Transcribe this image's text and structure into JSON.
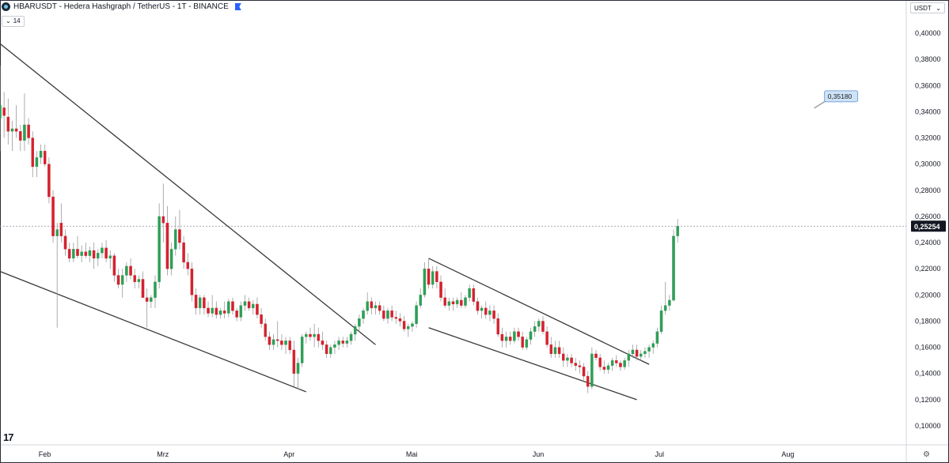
{
  "header": {
    "title": "HBARUSDT - Hedera Hashgraph / TetherUS - 1T - BINANCE",
    "indicator_label": "14",
    "currency": "USDT",
    "logo_icon": "hedera-coin-icon",
    "flag_icon": "flag-icon"
  },
  "chart_data": {
    "type": "candlestick",
    "title": "HBARUSDT - Hedera Hashgraph / TetherUS - 1T - BINANCE",
    "y_ticks": [
      "0,40000",
      "0,38000",
      "0,36000",
      "0,34000",
      "0,32000",
      "0,30000",
      "0,28000",
      "0,26000",
      "0,24000",
      "0,22000",
      "0,20000",
      "0,18000",
      "0,16000",
      "0,14000",
      "0,12000",
      "0,10000"
    ],
    "y_tick_values": [
      0.4,
      0.38,
      0.36,
      0.34,
      0.32,
      0.3,
      0.28,
      0.26,
      0.24,
      0.22,
      0.2,
      0.18,
      0.16,
      0.14,
      0.12,
      0.1
    ],
    "ylim": [
      0.09,
      0.41
    ],
    "x_ticks": [
      "Feb",
      "Mrz",
      "Apr",
      "Mai",
      "Jun",
      "Jul",
      "Aug"
    ],
    "x_tick_dates": [
      "2024-02-01",
      "2024-03-01",
      "2024-04-01",
      "2024-05-01",
      "2024-06-01",
      "2024-07-01",
      "2024-08-01"
    ],
    "xlim": [
      "2024-01-21",
      "2024-08-30"
    ],
    "last_price_label": "0,25254",
    "last_price": 0.25254,
    "annotation": {
      "label": "0,35180",
      "date": "2024-08-09",
      "price": 0.3518
    },
    "colors": {
      "up": "#2e9e57",
      "down": "#d4222e",
      "line": "#3a3a3a",
      "grid": "#f0f3fa",
      "price_line": "#9aa0ab"
    },
    "ohlc": [
      [
        "2024-01-21",
        0.335,
        0.375,
        0.31,
        0.345
      ],
      [
        "2024-01-22",
        0.343,
        0.355,
        0.32,
        0.337
      ],
      [
        "2024-01-23",
        0.336,
        0.35,
        0.315,
        0.325
      ],
      [
        "2024-01-24",
        0.325,
        0.333,
        0.31,
        0.327
      ],
      [
        "2024-01-25",
        0.327,
        0.345,
        0.32,
        0.325
      ],
      [
        "2024-01-26",
        0.325,
        0.33,
        0.31,
        0.318
      ],
      [
        "2024-01-27",
        0.318,
        0.354,
        0.31,
        0.33
      ],
      [
        "2024-01-28",
        0.33,
        0.335,
        0.315,
        0.32
      ],
      [
        "2024-01-29",
        0.32,
        0.325,
        0.29,
        0.298
      ],
      [
        "2024-01-30",
        0.298,
        0.31,
        0.29,
        0.305
      ],
      [
        "2024-01-31",
        0.305,
        0.315,
        0.3,
        0.31
      ],
      [
        "2024-02-01",
        0.31,
        0.315,
        0.298,
        0.3
      ],
      [
        "2024-02-02",
        0.3,
        0.305,
        0.27,
        0.275
      ],
      [
        "2024-02-03",
        0.275,
        0.28,
        0.24,
        0.245
      ],
      [
        "2024-02-04",
        0.245,
        0.255,
        0.175,
        0.25
      ],
      [
        "2024-02-05",
        0.255,
        0.27,
        0.24,
        0.245
      ],
      [
        "2024-02-06",
        0.245,
        0.25,
        0.23,
        0.235
      ],
      [
        "2024-02-07",
        0.235,
        0.24,
        0.225,
        0.228
      ],
      [
        "2024-02-08",
        0.228,
        0.24,
        0.225,
        0.235
      ],
      [
        "2024-02-09",
        0.235,
        0.245,
        0.228,
        0.23
      ],
      [
        "2024-02-10",
        0.23,
        0.238,
        0.225,
        0.233
      ],
      [
        "2024-02-11",
        0.233,
        0.24,
        0.228,
        0.23
      ],
      [
        "2024-02-12",
        0.23,
        0.237,
        0.225,
        0.234
      ],
      [
        "2024-02-13",
        0.234,
        0.24,
        0.22,
        0.228
      ],
      [
        "2024-02-14",
        0.228,
        0.235,
        0.222,
        0.232
      ],
      [
        "2024-02-15",
        0.232,
        0.24,
        0.228,
        0.236
      ],
      [
        "2024-02-16",
        0.236,
        0.242,
        0.225,
        0.228
      ],
      [
        "2024-02-17",
        0.228,
        0.234,
        0.22,
        0.23
      ],
      [
        "2024-02-18",
        0.23,
        0.232,
        0.21,
        0.215
      ],
      [
        "2024-02-19",
        0.215,
        0.22,
        0.205,
        0.208
      ],
      [
        "2024-02-20",
        0.208,
        0.22,
        0.198,
        0.215
      ],
      [
        "2024-02-21",
        0.215,
        0.225,
        0.21,
        0.222
      ],
      [
        "2024-02-22",
        0.222,
        0.228,
        0.212,
        0.215
      ],
      [
        "2024-02-23",
        0.215,
        0.22,
        0.205,
        0.21
      ],
      [
        "2024-02-24",
        0.21,
        0.215,
        0.205,
        0.212
      ],
      [
        "2024-02-25",
        0.212,
        0.218,
        0.2,
        0.198
      ],
      [
        "2024-02-26",
        0.198,
        0.205,
        0.175,
        0.195
      ],
      [
        "2024-02-27",
        0.195,
        0.2,
        0.19,
        0.198
      ],
      [
        "2024-02-28",
        0.198,
        0.215,
        0.19,
        0.21
      ],
      [
        "2024-02-29",
        0.21,
        0.27,
        0.205,
        0.26
      ],
      [
        "2024-03-01",
        0.26,
        0.285,
        0.24,
        0.255
      ],
      [
        "2024-03-02",
        0.255,
        0.268,
        0.215,
        0.22
      ],
      [
        "2024-03-03",
        0.22,
        0.24,
        0.215,
        0.235
      ],
      [
        "2024-03-04",
        0.235,
        0.26,
        0.23,
        0.25
      ],
      [
        "2024-03-05",
        0.25,
        0.265,
        0.235,
        0.24
      ],
      [
        "2024-03-06",
        0.24,
        0.245,
        0.22,
        0.225
      ],
      [
        "2024-03-07",
        0.225,
        0.232,
        0.215,
        0.22
      ],
      [
        "2024-03-08",
        0.22,
        0.225,
        0.195,
        0.2
      ],
      [
        "2024-03-09",
        0.2,
        0.205,
        0.185,
        0.19
      ],
      [
        "2024-03-10",
        0.19,
        0.2,
        0.185,
        0.198
      ],
      [
        "2024-03-11",
        0.198,
        0.2,
        0.185,
        0.19
      ],
      [
        "2024-03-12",
        0.19,
        0.195,
        0.183,
        0.186
      ],
      [
        "2024-03-13",
        0.186,
        0.2,
        0.183,
        0.19
      ],
      [
        "2024-03-14",
        0.19,
        0.195,
        0.182,
        0.185
      ],
      [
        "2024-03-15",
        0.185,
        0.19,
        0.182,
        0.188
      ],
      [
        "2024-03-16",
        0.188,
        0.195,
        0.182,
        0.186
      ],
      [
        "2024-03-17",
        0.186,
        0.197,
        0.183,
        0.195
      ],
      [
        "2024-03-18",
        0.195,
        0.198,
        0.185,
        0.188
      ],
      [
        "2024-03-19",
        0.188,
        0.19,
        0.18,
        0.183
      ],
      [
        "2024-03-20",
        0.183,
        0.195,
        0.18,
        0.192
      ],
      [
        "2024-03-21",
        0.192,
        0.2,
        0.188,
        0.195
      ],
      [
        "2024-03-22",
        0.195,
        0.198,
        0.188,
        0.19
      ],
      [
        "2024-03-23",
        0.19,
        0.196,
        0.185,
        0.193
      ],
      [
        "2024-03-24",
        0.193,
        0.198,
        0.182,
        0.185
      ],
      [
        "2024-03-25",
        0.185,
        0.19,
        0.175,
        0.178
      ],
      [
        "2024-03-26",
        0.178,
        0.182,
        0.165,
        0.168
      ],
      [
        "2024-03-27",
        0.168,
        0.172,
        0.158,
        0.162
      ],
      [
        "2024-03-28",
        0.162,
        0.17,
        0.158,
        0.166
      ],
      [
        "2024-03-29",
        0.166,
        0.18,
        0.16,
        0.165
      ],
      [
        "2024-03-30",
        0.165,
        0.17,
        0.158,
        0.162
      ],
      [
        "2024-03-31",
        0.162,
        0.168,
        0.155,
        0.165
      ],
      [
        "2024-04-01",
        0.165,
        0.168,
        0.155,
        0.158
      ],
      [
        "2024-04-02",
        0.158,
        0.165,
        0.13,
        0.14
      ],
      [
        "2024-04-03",
        0.14,
        0.152,
        0.128,
        0.148
      ],
      [
        "2024-04-04",
        0.148,
        0.17,
        0.145,
        0.168
      ],
      [
        "2024-04-05",
        0.168,
        0.172,
        0.163,
        0.17
      ],
      [
        "2024-04-06",
        0.17,
        0.175,
        0.165,
        0.168
      ],
      [
        "2024-04-07",
        0.168,
        0.178,
        0.16,
        0.17
      ],
      [
        "2024-04-08",
        0.17,
        0.175,
        0.16,
        0.165
      ],
      [
        "2024-04-09",
        0.165,
        0.172,
        0.158,
        0.162
      ],
      [
        "2024-04-10",
        0.162,
        0.165,
        0.152,
        0.155
      ],
      [
        "2024-04-11",
        0.155,
        0.162,
        0.152,
        0.16
      ],
      [
        "2024-04-12",
        0.16,
        0.165,
        0.155,
        0.162
      ],
      [
        "2024-04-13",
        0.162,
        0.168,
        0.158,
        0.165
      ],
      [
        "2024-04-14",
        0.165,
        0.168,
        0.16,
        0.163
      ],
      [
        "2024-04-15",
        0.163,
        0.168,
        0.16,
        0.165
      ],
      [
        "2024-04-16",
        0.165,
        0.172,
        0.162,
        0.17
      ],
      [
        "2024-04-17",
        0.17,
        0.178,
        0.165,
        0.176
      ],
      [
        "2024-04-18",
        0.176,
        0.185,
        0.172,
        0.182
      ],
      [
        "2024-04-19",
        0.182,
        0.19,
        0.178,
        0.188
      ],
      [
        "2024-04-20",
        0.188,
        0.202,
        0.185,
        0.195
      ],
      [
        "2024-04-21",
        0.195,
        0.198,
        0.185,
        0.19
      ],
      [
        "2024-04-22",
        0.19,
        0.195,
        0.185,
        0.192
      ],
      [
        "2024-04-23",
        0.192,
        0.195,
        0.185,
        0.188
      ],
      [
        "2024-04-24",
        0.188,
        0.192,
        0.18,
        0.182
      ],
      [
        "2024-04-25",
        0.182,
        0.19,
        0.178,
        0.188
      ],
      [
        "2024-04-26",
        0.188,
        0.192,
        0.18,
        0.183
      ],
      [
        "2024-04-27",
        0.183,
        0.188,
        0.178,
        0.182
      ],
      [
        "2024-04-28",
        0.182,
        0.186,
        0.176,
        0.18
      ],
      [
        "2024-04-29",
        0.18,
        0.184,
        0.172,
        0.174
      ],
      [
        "2024-04-30",
        0.174,
        0.178,
        0.168,
        0.176
      ],
      [
        "2024-05-01",
        0.176,
        0.18,
        0.172,
        0.178
      ],
      [
        "2024-05-02",
        0.178,
        0.195,
        0.175,
        0.192
      ],
      [
        "2024-05-03",
        0.192,
        0.205,
        0.19,
        0.2
      ],
      [
        "2024-05-04",
        0.2,
        0.225,
        0.198,
        0.22
      ],
      [
        "2024-05-05",
        0.22,
        0.228,
        0.205,
        0.208
      ],
      [
        "2024-05-06",
        0.208,
        0.222,
        0.205,
        0.218
      ],
      [
        "2024-05-07",
        0.218,
        0.222,
        0.205,
        0.21
      ],
      [
        "2024-05-08",
        0.21,
        0.215,
        0.195,
        0.198
      ],
      [
        "2024-05-09",
        0.198,
        0.205,
        0.19,
        0.192
      ],
      [
        "2024-05-10",
        0.192,
        0.198,
        0.188,
        0.195
      ],
      [
        "2024-05-11",
        0.195,
        0.198,
        0.188,
        0.193
      ],
      [
        "2024-05-12",
        0.193,
        0.198,
        0.19,
        0.196
      ],
      [
        "2024-05-13",
        0.196,
        0.202,
        0.19,
        0.192
      ],
      [
        "2024-05-14",
        0.192,
        0.2,
        0.19,
        0.198
      ],
      [
        "2024-05-15",
        0.198,
        0.208,
        0.195,
        0.205
      ],
      [
        "2024-05-16",
        0.205,
        0.208,
        0.192,
        0.195
      ],
      [
        "2024-05-17",
        0.195,
        0.198,
        0.185,
        0.188
      ],
      [
        "2024-05-18",
        0.188,
        0.192,
        0.182,
        0.19
      ],
      [
        "2024-05-19",
        0.19,
        0.195,
        0.182,
        0.185
      ],
      [
        "2024-05-20",
        0.185,
        0.192,
        0.18,
        0.188
      ],
      [
        "2024-05-21",
        0.188,
        0.192,
        0.178,
        0.182
      ],
      [
        "2024-05-22",
        0.182,
        0.186,
        0.168,
        0.17
      ],
      [
        "2024-05-23",
        0.17,
        0.175,
        0.16,
        0.165
      ],
      [
        "2024-05-24",
        0.165,
        0.172,
        0.16,
        0.168
      ],
      [
        "2024-05-25",
        0.168,
        0.172,
        0.162,
        0.165
      ],
      [
        "2024-05-26",
        0.165,
        0.175,
        0.163,
        0.172
      ],
      [
        "2024-05-27",
        0.172,
        0.175,
        0.165,
        0.168
      ],
      [
        "2024-05-28",
        0.168,
        0.172,
        0.158,
        0.16
      ],
      [
        "2024-05-29",
        0.16,
        0.168,
        0.158,
        0.166
      ],
      [
        "2024-05-30",
        0.166,
        0.175,
        0.162,
        0.172
      ],
      [
        "2024-05-31",
        0.172,
        0.18,
        0.168,
        0.176
      ],
      [
        "2024-06-01",
        0.176,
        0.182,
        0.172,
        0.18
      ],
      [
        "2024-06-02",
        0.18,
        0.184,
        0.17,
        0.172
      ],
      [
        "2024-06-03",
        0.172,
        0.176,
        0.16,
        0.162
      ],
      [
        "2024-06-04",
        0.162,
        0.168,
        0.152,
        0.155
      ],
      [
        "2024-06-05",
        0.155,
        0.165,
        0.152,
        0.16
      ],
      [
        "2024-06-06",
        0.16,
        0.165,
        0.152,
        0.155
      ],
      [
        "2024-06-07",
        0.155,
        0.16,
        0.145,
        0.15
      ],
      [
        "2024-06-08",
        0.15,
        0.155,
        0.145,
        0.152
      ],
      [
        "2024-06-09",
        0.152,
        0.155,
        0.145,
        0.148
      ],
      [
        "2024-06-10",
        0.148,
        0.152,
        0.142,
        0.146
      ],
      [
        "2024-06-11",
        0.146,
        0.15,
        0.14,
        0.145
      ],
      [
        "2024-06-12",
        0.145,
        0.148,
        0.135,
        0.138
      ],
      [
        "2024-06-13",
        0.138,
        0.142,
        0.125,
        0.13
      ],
      [
        "2024-06-14",
        0.13,
        0.16,
        0.128,
        0.155
      ],
      [
        "2024-06-15",
        0.155,
        0.158,
        0.15,
        0.152
      ],
      [
        "2024-06-16",
        0.152,
        0.155,
        0.142,
        0.145
      ],
      [
        "2024-06-17",
        0.145,
        0.15,
        0.14,
        0.143
      ],
      [
        "2024-06-18",
        0.143,
        0.148,
        0.14,
        0.146
      ],
      [
        "2024-06-19",
        0.146,
        0.152,
        0.142,
        0.15
      ],
      [
        "2024-06-20",
        0.15,
        0.154,
        0.145,
        0.148
      ],
      [
        "2024-06-21",
        0.148,
        0.15,
        0.142,
        0.145
      ],
      [
        "2024-06-22",
        0.145,
        0.152,
        0.143,
        0.15
      ],
      [
        "2024-06-23",
        0.15,
        0.158,
        0.145,
        0.155
      ],
      [
        "2024-06-24",
        0.155,
        0.162,
        0.152,
        0.158
      ],
      [
        "2024-06-25",
        0.158,
        0.162,
        0.15,
        0.153
      ],
      [
        "2024-06-26",
        0.153,
        0.158,
        0.15,
        0.155
      ],
      [
        "2024-06-27",
        0.155,
        0.16,
        0.152,
        0.157
      ],
      [
        "2024-06-28",
        0.157,
        0.162,
        0.152,
        0.16
      ],
      [
        "2024-06-29",
        0.16,
        0.165,
        0.155,
        0.163
      ],
      [
        "2024-06-30",
        0.163,
        0.175,
        0.16,
        0.172
      ],
      [
        "2024-07-01",
        0.172,
        0.192,
        0.17,
        0.188
      ],
      [
        "2024-07-02",
        0.188,
        0.21,
        0.185,
        0.192
      ],
      [
        "2024-07-03",
        0.192,
        0.2,
        0.188,
        0.196
      ],
      [
        "2024-07-04",
        0.196,
        0.25,
        0.195,
        0.245
      ],
      [
        "2024-07-05",
        0.245,
        0.258,
        0.24,
        0.2525
      ]
    ],
    "trend_lines": [
      {
        "name": "upper-trendline-1",
        "points": [
          [
            "2024-01-21",
            0.392
          ],
          [
            "2024-04-22",
            0.162
          ]
        ]
      },
      {
        "name": "lower-trendline-1",
        "points": [
          [
            "2024-01-21",
            0.218
          ],
          [
            "2024-04-05",
            0.126
          ]
        ]
      },
      {
        "name": "upper-trendline-2",
        "points": [
          [
            "2024-05-05",
            0.228
          ],
          [
            "2024-06-28",
            0.147
          ]
        ]
      },
      {
        "name": "lower-trendline-2",
        "points": [
          [
            "2024-05-05",
            0.175
          ],
          [
            "2024-06-25",
            0.12
          ]
        ]
      }
    ]
  },
  "footer": {
    "tv_logo": "17",
    "settings_icon": "settings-icon"
  }
}
